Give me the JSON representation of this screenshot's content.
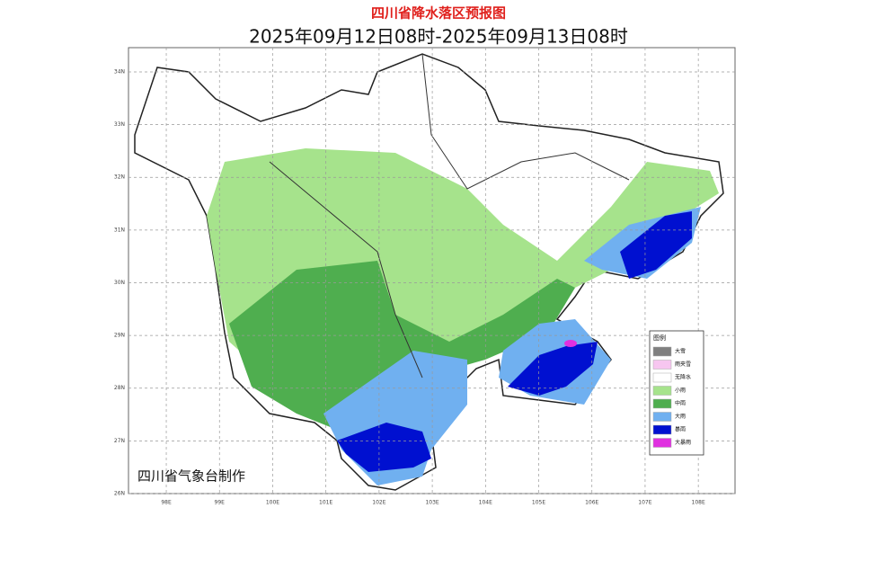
{
  "header": {
    "title": "四川省降水落区预报图",
    "subtitle": "2025年09月12日08时-2025年09月13日08时"
  },
  "map": {
    "credit": "四川省气象台制作",
    "grid": true,
    "lon_lim": [
      97.29,
      108.69
    ],
    "lat_lim": [
      26,
      34.46
    ],
    "lon_ticks": [
      {
        "value": 98,
        "label": "98E"
      },
      {
        "value": 99,
        "label": "99E"
      },
      {
        "value": 100,
        "label": "100E"
      },
      {
        "value": 101,
        "label": "101E"
      },
      {
        "value": 102,
        "label": "102E"
      },
      {
        "value": 103,
        "label": "103E"
      },
      {
        "value": 104,
        "label": "104E"
      },
      {
        "value": 105,
        "label": "105E"
      },
      {
        "value": 106,
        "label": "106E"
      },
      {
        "value": 107,
        "label": "107E"
      },
      {
        "value": 108,
        "label": "108E"
      }
    ],
    "lat_ticks": [
      {
        "value": 26,
        "label": "26N"
      },
      {
        "value": 27,
        "label": "27N"
      },
      {
        "value": 28,
        "label": "28N"
      },
      {
        "value": 29,
        "label": "29N"
      },
      {
        "value": 30,
        "label": "30N"
      },
      {
        "value": 31,
        "label": "31N"
      },
      {
        "value": 32,
        "label": "32N"
      },
      {
        "value": 33,
        "label": "33N"
      },
      {
        "value": 34,
        "label": "34N"
      }
    ]
  },
  "legend": {
    "title": "图例",
    "items": [
      {
        "label": "大雪",
        "color": "#7f7f7f"
      },
      {
        "label": "雨夹雪",
        "color": "#f7c6f0"
      },
      {
        "label": "无降水",
        "color": "#ffffff"
      },
      {
        "label": "小雨",
        "color": "#a6e38c"
      },
      {
        "label": "中雨",
        "color": "#4fae4f"
      },
      {
        "label": "大雨",
        "color": "#70b0f0"
      },
      {
        "label": "暴雨",
        "color": "#0010d0"
      },
      {
        "label": "大暴雨",
        "color": "#e030e0"
      }
    ]
  }
}
